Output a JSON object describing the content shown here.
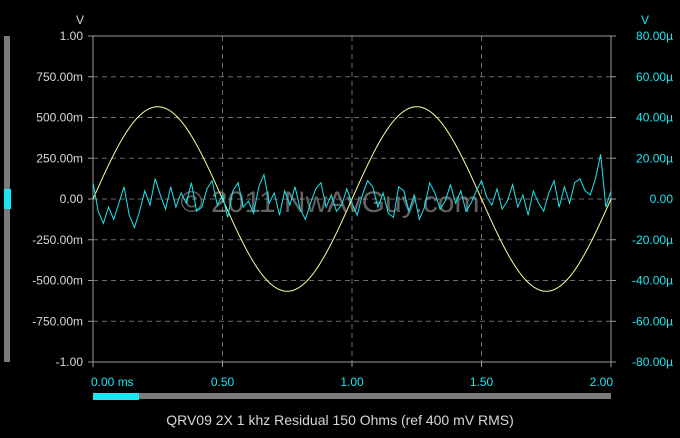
{
  "window": {
    "caption": "QRV09 2X 1 khz Residual 150 Ohms (ref 400 mV RMS)",
    "watermark": "© 2011 NwAvGuy.com"
  },
  "chart_data": {
    "type": "line",
    "title": "QRV09 2X 1 khz Residual 150 Ohms (ref 400 mV RMS)",
    "xlabel": "",
    "x_unit": "ms",
    "xlim": [
      0,
      2
    ],
    "x_ticks": [
      "0.00 ms",
      "0.50",
      "1.00",
      "1.50",
      "2.00"
    ],
    "left_axis": {
      "unit_label": "V",
      "ylim": [
        -1,
        1
      ],
      "ticks": [
        "1.00",
        "750.00m",
        "500.00m",
        "250.00m",
        "0.00",
        "-250.00m",
        "-500.00m",
        "-750.00m",
        "-1.00"
      ]
    },
    "right_axis": {
      "unit_label": "V",
      "ylim": [
        -80,
        80
      ],
      "unit": "µV",
      "ticks": [
        "80.00µ",
        "60.00µ",
        "40.00µ",
        "20.00µ",
        "0.00",
        "-20.00µ",
        "-40.00µ",
        "-60.00µ",
        "-80.00µ"
      ]
    },
    "grid": true,
    "series": [
      {
        "name": "",
        "axis": "left",
        "color": "#ffff9a",
        "x": [
          0,
          0.05,
          0.1,
          0.15,
          0.2,
          0.25,
          0.3,
          0.35,
          0.4,
          0.45,
          0.5,
          0.55,
          0.6,
          0.65,
          0.7,
          0.75,
          0.8,
          0.85,
          0.9,
          0.95,
          1.0,
          1.05,
          1.1,
          1.15,
          1.2,
          1.25,
          1.3,
          1.35,
          1.4,
          1.45,
          1.5,
          1.55,
          1.6,
          1.65,
          1.7,
          1.75,
          1.8,
          1.85,
          1.9,
          1.95,
          2.0
        ],
        "y": [
          0,
          0.175,
          0.333,
          0.458,
          0.538,
          0.566,
          0.538,
          0.458,
          0.333,
          0.175,
          0,
          -0.175,
          -0.333,
          -0.458,
          -0.538,
          -0.566,
          -0.538,
          -0.458,
          -0.333,
          -0.175,
          0,
          0.175,
          0.333,
          0.458,
          0.538,
          0.566,
          0.538,
          0.458,
          0.333,
          0.175,
          0,
          -0.175,
          -0.333,
          -0.458,
          -0.538,
          -0.566,
          -0.538,
          -0.458,
          -0.333,
          -0.175,
          0
        ]
      },
      {
        "name": "",
        "axis": "right",
        "color": "#19e6f0",
        "x": [
          0,
          0.02,
          0.04,
          0.06,
          0.08,
          0.1,
          0.12,
          0.14,
          0.16,
          0.18,
          0.2,
          0.22,
          0.24,
          0.26,
          0.28,
          0.3,
          0.32,
          0.34,
          0.36,
          0.38,
          0.4,
          0.42,
          0.44,
          0.46,
          0.48,
          0.5,
          0.52,
          0.54,
          0.56,
          0.58,
          0.6,
          0.62,
          0.64,
          0.66,
          0.68,
          0.7,
          0.72,
          0.74,
          0.76,
          0.78,
          0.8,
          0.82,
          0.84,
          0.86,
          0.88,
          0.9,
          0.92,
          0.94,
          0.96,
          0.98,
          1.0,
          1.02,
          1.04,
          1.06,
          1.08,
          1.1,
          1.12,
          1.14,
          1.16,
          1.18,
          1.2,
          1.22,
          1.24,
          1.26,
          1.28,
          1.3,
          1.32,
          1.34,
          1.36,
          1.38,
          1.4,
          1.42,
          1.44,
          1.46,
          1.48,
          1.5,
          1.52,
          1.54,
          1.56,
          1.58,
          1.6,
          1.62,
          1.64,
          1.66,
          1.68,
          1.7,
          1.72,
          1.74,
          1.76,
          1.78,
          1.8,
          1.82,
          1.84,
          1.86,
          1.88,
          1.9,
          1.92,
          1.94,
          1.96,
          1.98,
          2.0
        ],
        "y": [
          8,
          -6,
          -12,
          -4,
          -10,
          -2,
          6,
          -8,
          -14,
          -6,
          4,
          -3,
          10,
          2,
          -5,
          6,
          -4,
          3,
          -2,
          8,
          -6,
          -4,
          5,
          9,
          -3,
          2,
          -9,
          4,
          8,
          -4,
          -1,
          -7,
          6,
          12,
          -2,
          3,
          -8,
          4,
          -3,
          6,
          -5,
          -10,
          -2,
          5,
          8,
          -4,
          2,
          -6,
          -3,
          5,
          -2,
          -8,
          2,
          9,
          6,
          -4,
          3,
          -7,
          -9,
          6,
          4,
          -6,
          2,
          -10,
          -4,
          8,
          3,
          -5,
          -1,
          7,
          -2,
          4,
          -6,
          -2,
          4,
          9,
          1,
          -3,
          5,
          -5,
          -1,
          7,
          -4,
          2,
          -8,
          4,
          -2,
          -6,
          3,
          9,
          -4,
          6,
          -2,
          8,
          10,
          4,
          2,
          10,
          22,
          -4,
          4
        ]
      }
    ]
  }
}
